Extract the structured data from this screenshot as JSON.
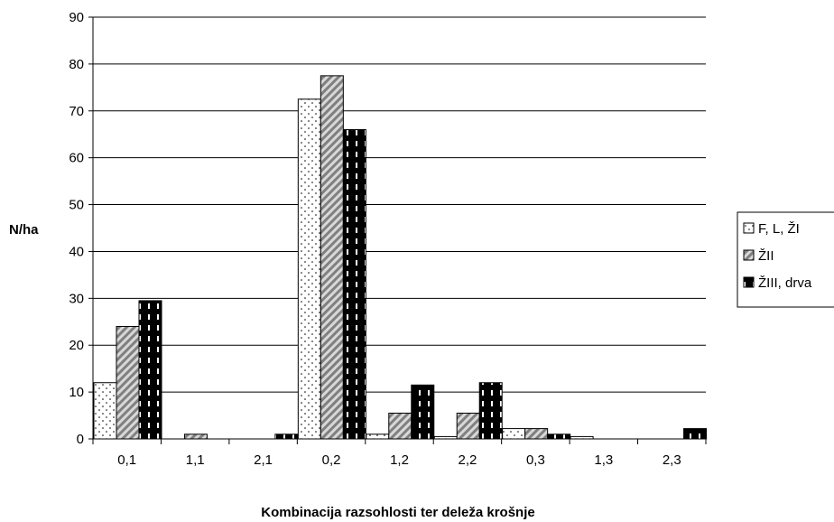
{
  "chart_data": {
    "type": "bar",
    "title": "",
    "xlabel": "Kombinacija razsohlosti ter deleža krošnje",
    "ylabel": "N/ha",
    "ylim": [
      0,
      90
    ],
    "yticks": [
      0,
      10,
      20,
      30,
      40,
      50,
      60,
      70,
      80,
      90
    ],
    "grid": true,
    "legend_position": "right",
    "categories": [
      "0,1",
      "1,1",
      "2,1",
      "0,2",
      "1,2",
      "2,2",
      "0,3",
      "1,3",
      "2,3"
    ],
    "series": [
      {
        "name": "F, L, ŽI",
        "pattern": "dots",
        "color": "#ffffff",
        "values": [
          12,
          0,
          0,
          72.5,
          1,
          0.5,
          2.2,
          0.5,
          0
        ]
      },
      {
        "name": "ŽII",
        "pattern": "diagonal-hatch",
        "color": "#a6a6a6",
        "values": [
          24,
          1,
          0,
          77.5,
          5.5,
          5.5,
          2.2,
          0,
          0
        ]
      },
      {
        "name": "ŽIII, drva",
        "pattern": "black-dashes",
        "color": "#000000",
        "values": [
          29.5,
          0,
          1,
          66,
          11.5,
          12,
          1,
          0,
          2.2
        ]
      }
    ]
  }
}
